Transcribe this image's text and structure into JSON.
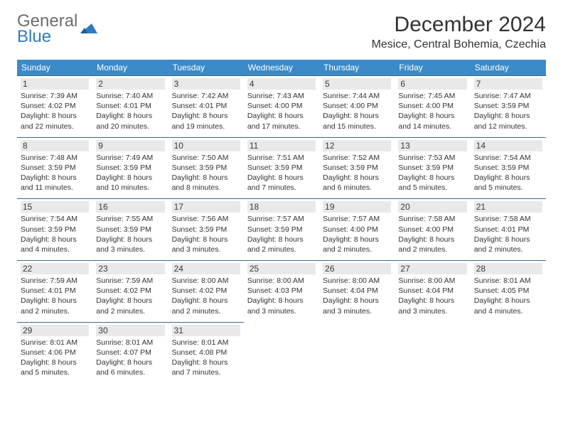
{
  "brand": {
    "text_top": "General",
    "text_bottom": "Blue",
    "accent_color": "#2f7bbf",
    "grey_color": "#6d6d6d"
  },
  "title": "December 2024",
  "location": "Mesice, Central Bohemia, Czechia",
  "style": {
    "header_bg": "#3b8bc8",
    "header_text": "#ffffff",
    "border_color": "#3b6a8f",
    "daynum_bg": "#e9e9e9",
    "body_text": "#333333",
    "title_fontsize": 30,
    "location_fontsize": 16,
    "dayhead_fontsize": 12,
    "cell_fontsize": 10.5
  },
  "day_headers": [
    "Sunday",
    "Monday",
    "Tuesday",
    "Wednesday",
    "Thursday",
    "Friday",
    "Saturday"
  ],
  "days": {
    "1": {
      "sunrise": "7:39 AM",
      "sunset": "4:02 PM",
      "dl1": "Daylight: 8 hours",
      "dl2": "and 22 minutes."
    },
    "2": {
      "sunrise": "7:40 AM",
      "sunset": "4:01 PM",
      "dl1": "Daylight: 8 hours",
      "dl2": "and 20 minutes."
    },
    "3": {
      "sunrise": "7:42 AM",
      "sunset": "4:01 PM",
      "dl1": "Daylight: 8 hours",
      "dl2": "and 19 minutes."
    },
    "4": {
      "sunrise": "7:43 AM",
      "sunset": "4:00 PM",
      "dl1": "Daylight: 8 hours",
      "dl2": "and 17 minutes."
    },
    "5": {
      "sunrise": "7:44 AM",
      "sunset": "4:00 PM",
      "dl1": "Daylight: 8 hours",
      "dl2": "and 15 minutes."
    },
    "6": {
      "sunrise": "7:45 AM",
      "sunset": "4:00 PM",
      "dl1": "Daylight: 8 hours",
      "dl2": "and 14 minutes."
    },
    "7": {
      "sunrise": "7:47 AM",
      "sunset": "3:59 PM",
      "dl1": "Daylight: 8 hours",
      "dl2": "and 12 minutes."
    },
    "8": {
      "sunrise": "7:48 AM",
      "sunset": "3:59 PM",
      "dl1": "Daylight: 8 hours",
      "dl2": "and 11 minutes."
    },
    "9": {
      "sunrise": "7:49 AM",
      "sunset": "3:59 PM",
      "dl1": "Daylight: 8 hours",
      "dl2": "and 10 minutes."
    },
    "10": {
      "sunrise": "7:50 AM",
      "sunset": "3:59 PM",
      "dl1": "Daylight: 8 hours",
      "dl2": "and 8 minutes."
    },
    "11": {
      "sunrise": "7:51 AM",
      "sunset": "3:59 PM",
      "dl1": "Daylight: 8 hours",
      "dl2": "and 7 minutes."
    },
    "12": {
      "sunrise": "7:52 AM",
      "sunset": "3:59 PM",
      "dl1": "Daylight: 8 hours",
      "dl2": "and 6 minutes."
    },
    "13": {
      "sunrise": "7:53 AM",
      "sunset": "3:59 PM",
      "dl1": "Daylight: 8 hours",
      "dl2": "and 5 minutes."
    },
    "14": {
      "sunrise": "7:54 AM",
      "sunset": "3:59 PM",
      "dl1": "Daylight: 8 hours",
      "dl2": "and 5 minutes."
    },
    "15": {
      "sunrise": "7:54 AM",
      "sunset": "3:59 PM",
      "dl1": "Daylight: 8 hours",
      "dl2": "and 4 minutes."
    },
    "16": {
      "sunrise": "7:55 AM",
      "sunset": "3:59 PM",
      "dl1": "Daylight: 8 hours",
      "dl2": "and 3 minutes."
    },
    "17": {
      "sunrise": "7:56 AM",
      "sunset": "3:59 PM",
      "dl1": "Daylight: 8 hours",
      "dl2": "and 3 minutes."
    },
    "18": {
      "sunrise": "7:57 AM",
      "sunset": "3:59 PM",
      "dl1": "Daylight: 8 hours",
      "dl2": "and 2 minutes."
    },
    "19": {
      "sunrise": "7:57 AM",
      "sunset": "4:00 PM",
      "dl1": "Daylight: 8 hours",
      "dl2": "and 2 minutes."
    },
    "20": {
      "sunrise": "7:58 AM",
      "sunset": "4:00 PM",
      "dl1": "Daylight: 8 hours",
      "dl2": "and 2 minutes."
    },
    "21": {
      "sunrise": "7:58 AM",
      "sunset": "4:01 PM",
      "dl1": "Daylight: 8 hours",
      "dl2": "and 2 minutes."
    },
    "22": {
      "sunrise": "7:59 AM",
      "sunset": "4:01 PM",
      "dl1": "Daylight: 8 hours",
      "dl2": "and 2 minutes."
    },
    "23": {
      "sunrise": "7:59 AM",
      "sunset": "4:02 PM",
      "dl1": "Daylight: 8 hours",
      "dl2": "and 2 minutes."
    },
    "24": {
      "sunrise": "8:00 AM",
      "sunset": "4:02 PM",
      "dl1": "Daylight: 8 hours",
      "dl2": "and 2 minutes."
    },
    "25": {
      "sunrise": "8:00 AM",
      "sunset": "4:03 PM",
      "dl1": "Daylight: 8 hours",
      "dl2": "and 3 minutes."
    },
    "26": {
      "sunrise": "8:00 AM",
      "sunset": "4:04 PM",
      "dl1": "Daylight: 8 hours",
      "dl2": "and 3 minutes."
    },
    "27": {
      "sunrise": "8:00 AM",
      "sunset": "4:04 PM",
      "dl1": "Daylight: 8 hours",
      "dl2": "and 3 minutes."
    },
    "28": {
      "sunrise": "8:01 AM",
      "sunset": "4:05 PM",
      "dl1": "Daylight: 8 hours",
      "dl2": "and 4 minutes."
    },
    "29": {
      "sunrise": "8:01 AM",
      "sunset": "4:06 PM",
      "dl1": "Daylight: 8 hours",
      "dl2": "and 5 minutes."
    },
    "30": {
      "sunrise": "8:01 AM",
      "sunset": "4:07 PM",
      "dl1": "Daylight: 8 hours",
      "dl2": "and 6 minutes."
    },
    "31": {
      "sunrise": "8:01 AM",
      "sunset": "4:08 PM",
      "dl1": "Daylight: 8 hours",
      "dl2": "and 7 minutes."
    }
  },
  "labels": {
    "sunrise_prefix": "Sunrise: ",
    "sunset_prefix": "Sunset: "
  },
  "layout": {
    "weeks": [
      [
        1,
        2,
        3,
        4,
        5,
        6,
        7
      ],
      [
        8,
        9,
        10,
        11,
        12,
        13,
        14
      ],
      [
        15,
        16,
        17,
        18,
        19,
        20,
        21
      ],
      [
        22,
        23,
        24,
        25,
        26,
        27,
        28
      ],
      [
        29,
        30,
        31,
        null,
        null,
        null,
        null
      ]
    ]
  }
}
